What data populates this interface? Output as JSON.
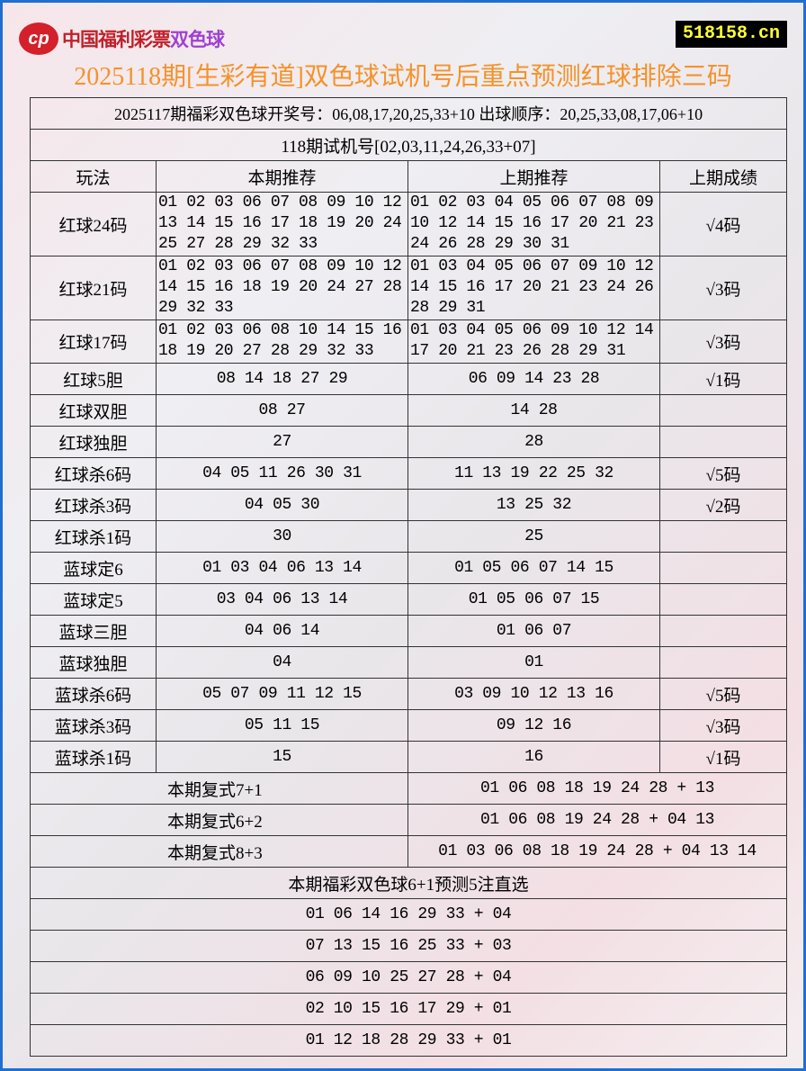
{
  "logo": {
    "text": "中国福利彩票",
    "brand": "双色球"
  },
  "site": "518158.cn",
  "title": "2025118期[生彩有道]双色球试机号后重点预测红球排除三码",
  "info": {
    "draw": "2025117期福彩双色球开奖号：06,08,17,20,25,33+10 出球顺序：20,25,33,08,17,06+10",
    "trial": "118期试机号[02,03,11,24,26,33+07]"
  },
  "headers": [
    "玩法",
    "本期推荐",
    "上期推荐",
    "上期成绩"
  ],
  "rows": [
    {
      "name": "红球24码",
      "cur": [
        "01 02 03 06 07 08 09 10 12",
        "13 14 15 16 17 18 19 20 24",
        "25 27 28 29 32 33"
      ],
      "prev": [
        "01 02 03 04 05 06 07 08 09",
        "10 12 14 15 16 17 20 21 23",
        "24 26 28 29 30 31"
      ],
      "result": "√4码"
    },
    {
      "name": "红球21码",
      "cur": [
        "01 02 03 06 07 08 09 10 12",
        "14 15 16 18 19 20 24 27 28",
        "29 32 33"
      ],
      "prev": [
        "01 03 04 05 06 07 09 10 12",
        "14 15 16 17 20 21 23 24 26",
        "28 29 31"
      ],
      "result": "√3码"
    },
    {
      "name": "红球17码",
      "cur": [
        "01 02 03 06 08 10 14 15 16",
        "18 19 20 27 28 29 32 33"
      ],
      "prev": [
        "01 03 04 05 06 09 10 12 14",
        "17 20 21 23 26 28 29 31"
      ],
      "result": "√3码"
    }
  ],
  "simple_rows": [
    {
      "name": "红球5胆",
      "cur": "08 14 18 27 29",
      "prev": "06 09 14 23 28",
      "result": "√1码"
    },
    {
      "name": "红球双胆",
      "cur": "08 27",
      "prev": "14 28",
      "result": ""
    },
    {
      "name": "红球独胆",
      "cur": "27",
      "prev": "28",
      "result": ""
    },
    {
      "name": "红球杀6码",
      "cur": "04 05 11 26 30 31",
      "prev": "11 13 19 22 25 32",
      "result": "√5码"
    },
    {
      "name": "红球杀3码",
      "cur": "04 05 30",
      "prev": "13 25 32",
      "result": "√2码"
    },
    {
      "name": "红球杀1码",
      "cur": "30",
      "prev": "25",
      "result": ""
    },
    {
      "name": "蓝球定6",
      "cur": "01 03 04 06 13 14",
      "prev": "01 05 06 07 14 15",
      "result": ""
    },
    {
      "name": "蓝球定5",
      "cur": "03 04 06 13 14",
      "prev": "01 05 06 07 15",
      "result": ""
    },
    {
      "name": "蓝球三胆",
      "cur": "04 06 14",
      "prev": "01 06 07",
      "result": ""
    },
    {
      "name": "蓝球独胆",
      "cur": "04",
      "prev": "01",
      "result": ""
    },
    {
      "name": "蓝球杀6码",
      "cur": "05 07 09 11 12 15",
      "prev": "03 09 10 12 13 16",
      "result": "√5码"
    },
    {
      "name": "蓝球杀3码",
      "cur": "05 11 15",
      "prev": "09 12 16",
      "result": "√3码"
    },
    {
      "name": "蓝球杀1码",
      "cur": "15",
      "prev": "16",
      "result": "√1码"
    }
  ],
  "compound": [
    {
      "name": "本期复式7+1",
      "value": "01 06 08 18 19 24 28 + 13"
    },
    {
      "name": "本期复式6+2",
      "value": "01 06 08 19 24 28 + 04 13"
    },
    {
      "name": "本期复式8+3",
      "value": "01 03 06 08 18 19 24 28 + 04 13 14"
    }
  ],
  "picks": {
    "title": "本期福彩双色球6+1预测5注直选",
    "items": [
      "01 06 14 16 29 33 + 04",
      "07 13 15 16 25 33 + 03",
      "06 09 10 25 27 28 + 04",
      "02 10 15 16 17 29 + 01",
      "01 12 18 28 29 33 + 01"
    ]
  }
}
